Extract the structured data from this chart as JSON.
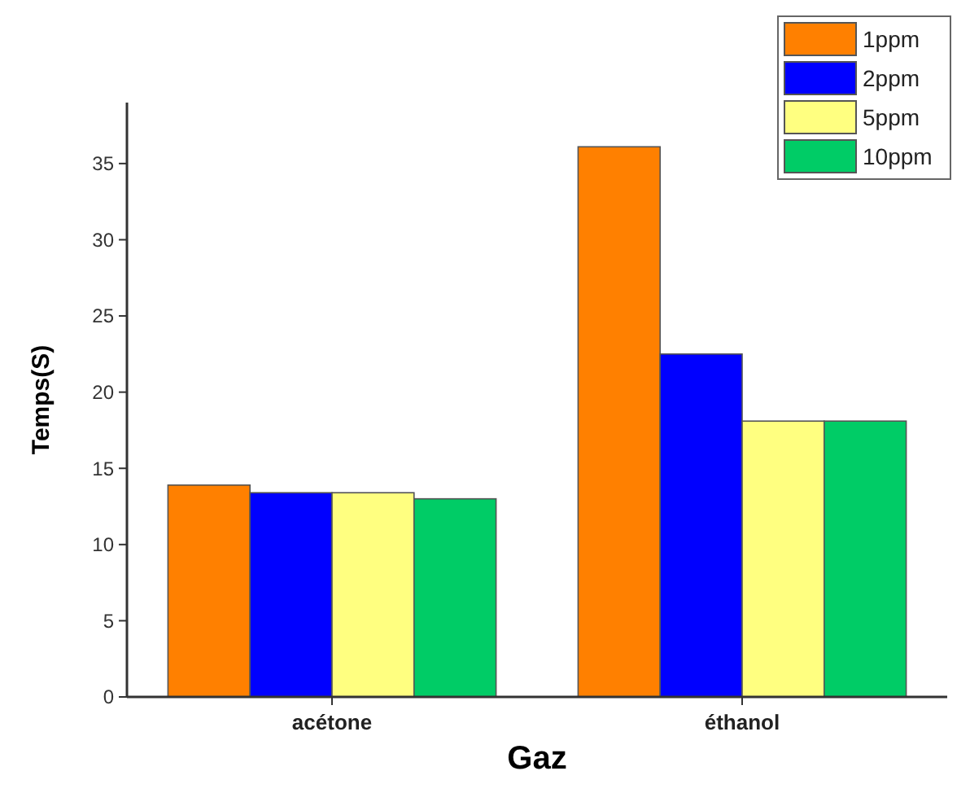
{
  "chart_data": {
    "type": "bar",
    "xlabel": "Gaz",
    "ylabel": "Temps(S)",
    "categories": [
      "acétone",
      "éthanol"
    ],
    "series": [
      {
        "name": "1ppm",
        "color": "#ff8000",
        "values": [
          13.9,
          36.1
        ]
      },
      {
        "name": "2ppm",
        "color": "#0000ff",
        "values": [
          13.4,
          22.5
        ]
      },
      {
        "name": "5ppm",
        "color": "#ffff80",
        "values": [
          13.4,
          18.1
        ]
      },
      {
        "name": "10ppm",
        "color": "#00cc66",
        "values": [
          13.0,
          18.1
        ]
      }
    ],
    "ylim": [
      0,
      39
    ],
    "yticks": [
      0,
      5,
      10,
      15,
      20,
      25,
      30,
      35
    ],
    "grid": false,
    "legend": "top right"
  }
}
